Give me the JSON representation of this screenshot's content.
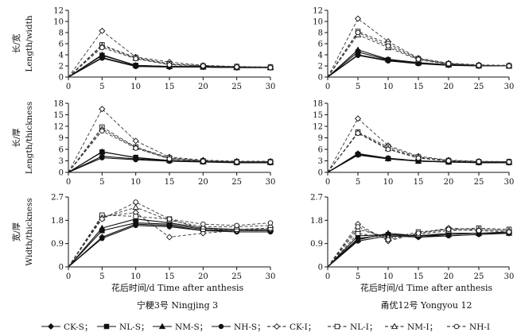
{
  "chart_data": {
    "type": "line",
    "legend": {
      "position": "bottom",
      "entries": [
        {
          "label": "CK-S；",
          "marker": "diamond",
          "fill": "solid",
          "dash": "solid"
        },
        {
          "label": "NL-S；",
          "marker": "square",
          "fill": "solid",
          "dash": "solid"
        },
        {
          "label": "NM-S；",
          "marker": "triangle",
          "fill": "solid",
          "dash": "solid"
        },
        {
          "label": "NH-S；",
          "marker": "circle",
          "fill": "solid",
          "dash": "solid"
        },
        {
          "label": "CK-I；",
          "marker": "diamond",
          "fill": "open",
          "dash": "dashed"
        },
        {
          "label": "NL-I；",
          "marker": "square",
          "fill": "open",
          "dash": "dashed"
        },
        {
          "label": "NM-I；",
          "marker": "triangle",
          "fill": "open",
          "dash": "dashed"
        },
        {
          "label": "NH-I",
          "marker": "circle",
          "fill": "open",
          "dash": "dashed"
        }
      ]
    },
    "rows": [
      {
        "ylabel_cn": "长/宽",
        "ylabel_en": "Length/width",
        "ylim": [
          0,
          12
        ],
        "yticks": [
          "0",
          "2",
          "4",
          "6",
          "8",
          "10",
          "12"
        ],
        "ytick_values": [
          0,
          2,
          4,
          6,
          8,
          10,
          12
        ]
      },
      {
        "ylabel_cn": "长/厚",
        "ylabel_en": "Length/thickness",
        "ylim": [
          0,
          18
        ],
        "yticks": [
          "0",
          "3",
          "6",
          "9",
          "12",
          "15",
          "18"
        ],
        "ytick_values": [
          0,
          3,
          6,
          9,
          12,
          15,
          18
        ]
      },
      {
        "ylabel_cn": "宽/厚",
        "ylabel_en": "Width/thickness",
        "ylim": [
          0,
          2.7
        ],
        "yticks": [
          "0",
          "0.9",
          "1.8",
          "2.7"
        ],
        "ytick_values": [
          0,
          0.9,
          1.8,
          2.7
        ]
      }
    ],
    "columns": [
      {
        "xlabel": "花后时间/d   Time after anthesis",
        "caption": "宁粳3号 Ningjing 3"
      },
      {
        "xlabel": "花后时间/d   Time after anthesis",
        "caption": "甬优12号 Yongyou 12"
      }
    ],
    "x": [
      0,
      5,
      10,
      15,
      20,
      25,
      30
    ],
    "xticks": [
      "0",
      "5",
      "10",
      "15",
      "20",
      "25",
      "30"
    ],
    "xlim": [
      0,
      30
    ],
    "panels": [
      {
        "row": 0,
        "col": 0,
        "series": [
          {
            "name": "CK-S",
            "values": [
              0,
              3.5,
              2.0,
              1.8,
              1.8,
              1.7,
              1.7
            ]
          },
          {
            "name": "NL-S",
            "values": [
              0,
              3.9,
              2.1,
              1.9,
              1.9,
              1.8,
              1.7
            ]
          },
          {
            "name": "NM-S",
            "values": [
              0,
              4.0,
              2.1,
              1.9,
              1.8,
              1.7,
              1.7
            ]
          },
          {
            "name": "NH-S",
            "values": [
              0,
              3.4,
              1.9,
              1.8,
              1.8,
              1.7,
              1.7
            ]
          },
          {
            "name": "CK-I",
            "values": [
              0,
              8.3,
              3.6,
              2.7,
              2.1,
              1.9,
              1.8
            ]
          },
          {
            "name": "NL-I",
            "values": [
              0,
              5.8,
              3.5,
              2.4,
              2.0,
              1.9,
              1.8
            ]
          },
          {
            "name": "NM-I",
            "values": [
              0,
              5.6,
              3.4,
              2.3,
              2.0,
              1.8,
              1.8
            ]
          },
          {
            "name": "NH-I",
            "values": [
              0,
              5.3,
              3.3,
              2.2,
              2.0,
              1.8,
              1.7
            ]
          }
        ]
      },
      {
        "row": 0,
        "col": 1,
        "series": [
          {
            "name": "CK-S",
            "values": [
              0,
              4.0,
              3.0,
              2.5,
              2.2,
              2.0,
              2.0
            ]
          },
          {
            "name": "NL-S",
            "values": [
              0,
              4.5,
              3.1,
              2.5,
              2.2,
              2.0,
              2.0
            ]
          },
          {
            "name": "NM-S",
            "values": [
              0,
              4.9,
              3.2,
              2.6,
              2.2,
              2.1,
              2.0
            ]
          },
          {
            "name": "NH-S",
            "values": [
              0,
              3.9,
              2.9,
              2.4,
              2.1,
              2.0,
              2.0
            ]
          },
          {
            "name": "CK-I",
            "values": [
              0,
              10.5,
              6.4,
              3.4,
              2.5,
              2.2,
              2.1
            ]
          },
          {
            "name": "NL-I",
            "values": [
              0,
              8.2,
              6.0,
              3.3,
              2.4,
              2.1,
              2.0
            ]
          },
          {
            "name": "NM-I",
            "values": [
              0,
              7.6,
              5.3,
              3.1,
              2.3,
              2.1,
              2.0
            ]
          },
          {
            "name": "NH-I",
            "values": [
              0,
              8.0,
              5.6,
              3.2,
              2.4,
              2.1,
              2.0
            ]
          }
        ]
      },
      {
        "row": 1,
        "col": 0,
        "series": [
          {
            "name": "CK-S",
            "values": [
              0,
              4.2,
              3.5,
              3.0,
              2.8,
              2.6,
              2.6
            ]
          },
          {
            "name": "NL-S",
            "values": [
              0,
              5.3,
              3.9,
              3.1,
              2.8,
              2.6,
              2.6
            ]
          },
          {
            "name": "NM-S",
            "values": [
              0,
              5.4,
              3.8,
              3.1,
              2.8,
              2.6,
              2.6
            ]
          },
          {
            "name": "NH-S",
            "values": [
              0,
              3.8,
              3.3,
              2.9,
              2.7,
              2.5,
              2.5
            ]
          },
          {
            "name": "CK-I",
            "values": [
              0,
              16.5,
              8.2,
              4.0,
              3.2,
              2.9,
              2.9
            ]
          },
          {
            "name": "NL-I",
            "values": [
              0,
              11.8,
              6.6,
              3.8,
              3.0,
              2.8,
              2.8
            ]
          },
          {
            "name": "NM-I",
            "values": [
              0,
              11.3,
              6.5,
              3.6,
              3.0,
              2.8,
              2.8
            ]
          },
          {
            "name": "NH-I",
            "values": [
              0,
              10.8,
              6.3,
              3.5,
              2.9,
              2.7,
              2.7
            ]
          }
        ]
      },
      {
        "row": 1,
        "col": 1,
        "series": [
          {
            "name": "CK-S",
            "values": [
              0,
              4.9,
              3.7,
              3.0,
              2.8,
              2.6,
              2.6
            ]
          },
          {
            "name": "NL-S",
            "values": [
              0,
              4.7,
              3.6,
              3.0,
              2.7,
              2.6,
              2.6
            ]
          },
          {
            "name": "NM-S",
            "values": [
              0,
              4.8,
              3.6,
              2.9,
              2.7,
              2.6,
              2.6
            ]
          },
          {
            "name": "NH-S",
            "values": [
              0,
              4.5,
              3.5,
              2.9,
              2.7,
              2.5,
              2.5
            ]
          },
          {
            "name": "CK-I",
            "values": [
              0,
              14.0,
              7.0,
              4.2,
              3.2,
              2.9,
              2.8
            ]
          },
          {
            "name": "NL-I",
            "values": [
              0,
              10.5,
              6.6,
              4.0,
              3.1,
              2.8,
              2.8
            ]
          },
          {
            "name": "NM-I",
            "values": [
              0,
              10.3,
              6.2,
              3.8,
              3.0,
              2.8,
              2.7
            ]
          },
          {
            "name": "NH-I",
            "values": [
              0,
              10.2,
              6.0,
              3.7,
              3.0,
              2.8,
              2.7
            ]
          }
        ]
      },
      {
        "row": 2,
        "col": 0,
        "series": [
          {
            "name": "CK-S",
            "values": [
              0,
              1.15,
              1.65,
              1.6,
              1.4,
              1.4,
              1.4
            ]
          },
          {
            "name": "NL-S",
            "values": [
              0,
              1.4,
              1.7,
              1.65,
              1.45,
              1.4,
              1.4
            ]
          },
          {
            "name": "NM-S",
            "values": [
              0,
              1.5,
              1.85,
              1.7,
              1.5,
              1.45,
              1.45
            ]
          },
          {
            "name": "NH-S",
            "values": [
              0,
              1.1,
              1.6,
              1.55,
              1.4,
              1.35,
              1.35
            ]
          },
          {
            "name": "CK-I",
            "values": [
              0,
              1.95,
              2.1,
              1.15,
              1.3,
              1.4,
              1.45
            ]
          },
          {
            "name": "NL-I",
            "values": [
              0,
              2.0,
              1.95,
              1.85,
              1.45,
              1.45,
              1.5
            ]
          },
          {
            "name": "NM-I",
            "values": [
              0,
              1.9,
              2.3,
              1.8,
              1.55,
              1.55,
              1.6
            ]
          },
          {
            "name": "NH-I",
            "values": [
              0,
              1.85,
              2.5,
              1.85,
              1.65,
              1.6,
              1.7
            ]
          }
        ]
      },
      {
        "row": 2,
        "col": 1,
        "series": [
          {
            "name": "CK-S",
            "values": [
              0,
              1.1,
              1.25,
              1.15,
              1.25,
              1.3,
              1.3
            ]
          },
          {
            "name": "NL-S",
            "values": [
              0,
              1.2,
              1.25,
              1.2,
              1.3,
              1.3,
              1.35
            ]
          },
          {
            "name": "NM-S",
            "values": [
              0,
              1.05,
              1.3,
              1.2,
              1.25,
              1.3,
              1.3
            ]
          },
          {
            "name": "NH-S",
            "values": [
              0,
              1.0,
              1.2,
              1.15,
              1.2,
              1.25,
              1.3
            ]
          },
          {
            "name": "CK-I",
            "values": [
              0,
              1.65,
              1.0,
              1.3,
              1.5,
              1.45,
              1.4
            ]
          },
          {
            "name": "NL-I",
            "values": [
              0,
              1.3,
              1.1,
              1.35,
              1.45,
              1.5,
              1.45
            ]
          },
          {
            "name": "NM-I",
            "values": [
              0,
              1.45,
              1.15,
              1.25,
              1.4,
              1.45,
              1.4
            ]
          },
          {
            "name": "NH-I",
            "values": [
              0,
              1.55,
              1.05,
              1.3,
              1.45,
              1.4,
              1.35
            ]
          }
        ]
      }
    ]
  }
}
